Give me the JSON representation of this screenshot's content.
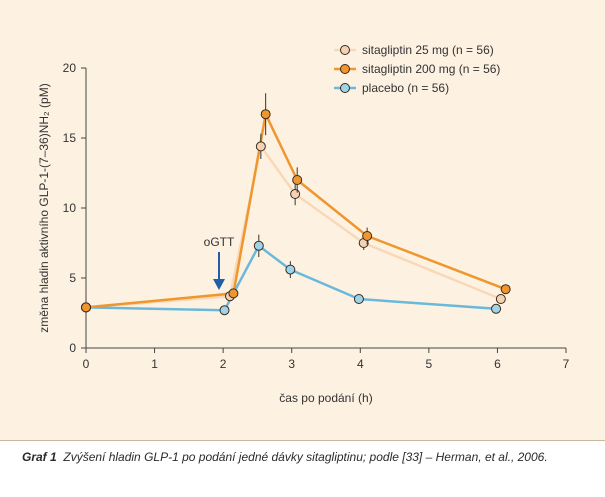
{
  "caption": {
    "label": "Graf 1",
    "text": "Zvýšení hladin GLP-1 po podání jedné dávky sitagliptinu; podle [33] – Herman, et al., 2006."
  },
  "chart_data": {
    "type": "line",
    "xlabel": "čas po podání (h)",
    "ylabel": "změna hladin aktivního GLP-1-(7–36)NH₂ (pM)",
    "xlim": [
      0,
      7
    ],
    "ylim": [
      0,
      20
    ],
    "xticks": [
      0,
      1,
      2,
      3,
      4,
      5,
      6,
      7
    ],
    "yticks": [
      0,
      5,
      10,
      15,
      20
    ],
    "grid": false,
    "legend_position": "top-right",
    "annotation": {
      "text": "oGTT",
      "x": 1.93
    },
    "series": [
      {
        "name": "sitagliptin 25 mg (n = 56)",
        "color": "#f8d8b8",
        "marker_fill": "#f3d3b4",
        "x": [
          0,
          2.1,
          2.55,
          3.05,
          4.05,
          6.05
        ],
        "y": [
          2.9,
          3.7,
          14.4,
          11.0,
          7.5,
          3.5
        ],
        "err": [
          0,
          0,
          0.9,
          0.8,
          0.5,
          0
        ]
      },
      {
        "name": "sitagliptin 200 mg (n = 56)",
        "color": "#f0962e",
        "marker_fill": "#f0962e",
        "x": [
          0,
          2.15,
          2.62,
          3.08,
          4.1,
          6.12
        ],
        "y": [
          2.9,
          3.9,
          16.7,
          12.0,
          8.0,
          4.2
        ],
        "err": [
          0,
          0,
          1.5,
          0.9,
          0.6,
          0
        ]
      },
      {
        "name": "placebo (n = 56)",
        "color": "#6ab8dc",
        "marker_fill": "#9fd3ea",
        "x": [
          0,
          2.02,
          2.52,
          2.98,
          3.98,
          5.98
        ],
        "y": [
          2.9,
          2.7,
          7.3,
          5.6,
          3.5,
          2.8
        ],
        "err": [
          0,
          0,
          0.8,
          0.6,
          0,
          0
        ]
      }
    ]
  }
}
